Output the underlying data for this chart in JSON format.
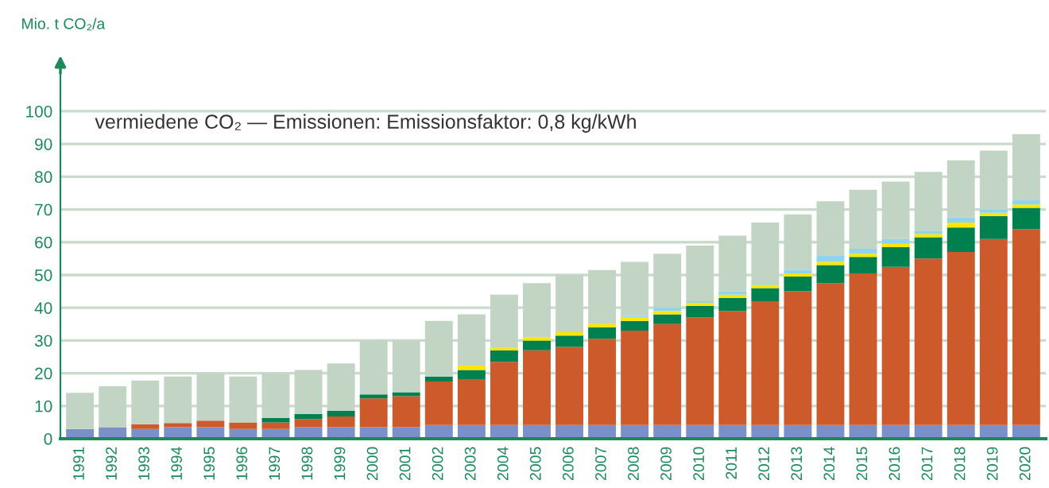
{
  "chart_data": {
    "type": "bar",
    "stacked": true,
    "ylabel": "Mio. t CO₂/a",
    "annotations": [
      "vermiedene CO₂ — Emissionen: Emissionsfaktor: 0,8 kg/kWh"
    ],
    "categories": [
      "1991",
      "1992",
      "1993",
      "1994",
      "1995",
      "1996",
      "1997",
      "1998",
      "1999",
      "2000",
      "2001",
      "2002",
      "2003",
      "2004",
      "2005",
      "2006",
      "2007",
      "2008",
      "2009",
      "2010",
      "2011",
      "2012",
      "2013",
      "2014",
      "2015",
      "2016",
      "2017",
      "2018",
      "2019",
      "2020"
    ],
    "series": [
      {
        "color": "#7b8fc8",
        "values": [
          3,
          3.5,
          3,
          3.5,
          3.5,
          3,
          3,
          3.5,
          3.5,
          3.5,
          3.5,
          4.2,
          4.2,
          4.2,
          4.2,
          4.2,
          4.2,
          4.2,
          4.2,
          4.2,
          4.2,
          4.2,
          4.2,
          4.2,
          4.2,
          4.2,
          4.2,
          4.2,
          4.2,
          4.2
        ]
      },
      {
        "color": "#cc5a2a",
        "values": [
          0,
          0,
          1.4,
          1.3,
          2,
          2,
          2,
          2.5,
          3.3,
          8.8,
          9.5,
          13.3,
          13.8,
          19.3,
          22.8,
          23.8,
          26.3,
          28.8,
          30.8,
          32.8,
          34.8,
          37.8,
          40.8,
          43.3,
          46.3,
          48.3,
          50.8,
          52.8,
          56.8,
          59.8
        ]
      },
      {
        "color": "#007f4f",
        "values": [
          0,
          0,
          0,
          0,
          0,
          0,
          1.3,
          1.5,
          1.7,
          1.2,
          1.2,
          1.5,
          3,
          3.5,
          3,
          3.5,
          3.5,
          3,
          3,
          3.5,
          4,
          4,
          4.5,
          5.5,
          5,
          6,
          6.5,
          7.5,
          7,
          6.5
        ]
      },
      {
        "color": "#ffe600",
        "values": [
          0,
          0,
          0,
          0,
          0,
          0,
          0,
          0,
          0,
          0,
          0,
          0,
          1.3,
          0.7,
          1,
          1,
          1,
          1,
          1,
          1,
          1,
          1,
          1,
          1,
          1,
          1,
          1,
          1.5,
          1,
          1
        ]
      },
      {
        "color": "#8fd3ef",
        "values": [
          0,
          0,
          0,
          0,
          0,
          0,
          0,
          0,
          0,
          0,
          0,
          0,
          0,
          0,
          0,
          0,
          0,
          0.5,
          1,
          0.5,
          1,
          0.5,
          1,
          2,
          1.5,
          1.5,
          1,
          1.5,
          1,
          1.5
        ]
      },
      {
        "color": "#c2d4c4",
        "values": [
          11,
          12.5,
          13.4,
          14.2,
          14.5,
          14,
          13.7,
          13.5,
          14.5,
          16.5,
          15.8,
          17,
          15.7,
          16.3,
          16.5,
          17.5,
          16.5,
          16.5,
          16.5,
          17,
          17,
          18.5,
          17,
          16.5,
          18,
          17.5,
          18,
          17.5,
          18,
          20
        ]
      }
    ],
    "ylim": [
      0,
      116
    ],
    "yticks": [
      0,
      10,
      20,
      30,
      40,
      50,
      60,
      70,
      80,
      90,
      100
    ],
    "grid": "y"
  }
}
